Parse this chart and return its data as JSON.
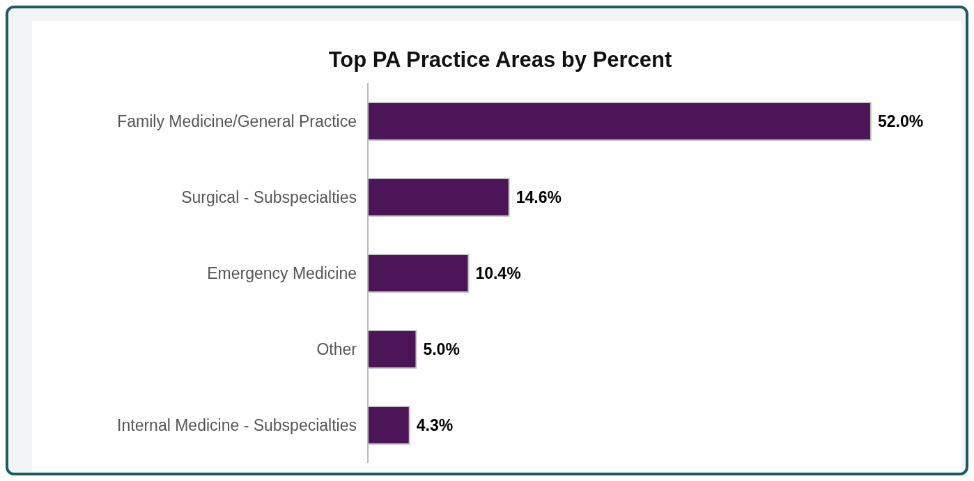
{
  "chart_data": {
    "type": "bar",
    "orientation": "horizontal",
    "title": "Top PA Practice Areas by Percent",
    "categories": [
      "Family Medicine/General Practice",
      "Surgical - Subspecialties",
      "Emergency Medicine",
      "Other",
      "Internal Medicine - Subspecialties"
    ],
    "values": [
      52.0,
      14.6,
      10.4,
      5.0,
      4.3
    ],
    "value_labels": [
      "52.0%",
      "14.6%",
      "10.4%",
      "5.0%",
      "4.3%"
    ],
    "color": "#4b1558",
    "grid": false,
    "legend": false
  }
}
